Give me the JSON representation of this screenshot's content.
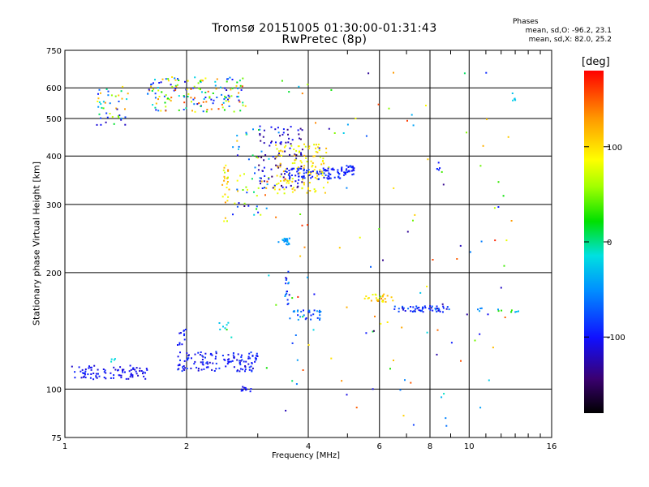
{
  "chart_data": {
    "type": "scatter",
    "title": "Tromsø 20151005 01:30:00-01:31:43",
    "subtitle": "RwPretec (8p)",
    "xlabel": "Frequency [MHz]",
    "ylabel": "Stationary phase Virtual Height [km]",
    "x_scale": "log",
    "y_scale": "log",
    "xlim": [
      1,
      16
    ],
    "ylim": [
      75,
      750
    ],
    "x_ticks": [
      "1",
      "2",
      "4",
      "6",
      "8",
      "10",
      "16"
    ],
    "x_tick_values": [
      1,
      2,
      4,
      6,
      8,
      10,
      16
    ],
    "y_ticks": [
      "75",
      "100",
      "200",
      "300",
      "400",
      "500",
      "600",
      "750"
    ],
    "y_tick_values": [
      75,
      100,
      200,
      300,
      400,
      500,
      600,
      750
    ],
    "grid": true,
    "colorbar": {
      "unit": "[deg]",
      "range": [
        -180,
        180
      ],
      "ticks": [
        "100",
        "0",
        "-100"
      ],
      "tick_values": [
        100,
        0,
        -100
      ]
    },
    "annotations": {
      "heading": "Phases",
      "line1": "mean, sd,O: -96.2, 23.1",
      "line2": "mean, sd,X:  82.0, 25.2"
    },
    "clusters": [
      {
        "x": [
          1.0,
          1.6
        ],
        "y": [
          106,
          115
        ],
        "phase": [
          -120,
          -90
        ],
        "n": 90
      },
      {
        "x": [
          1.3,
          1.35
        ],
        "y": [
          117,
          120
        ],
        "phase": [
          -20,
          -10
        ],
        "n": 4
      },
      {
        "x": [
          1.9,
          3.0
        ],
        "y": [
          111,
          125
        ],
        "phase": [
          -120,
          -80
        ],
        "n": 130
      },
      {
        "x": [
          1.9,
          2.0
        ],
        "y": [
          130,
          145
        ],
        "phase": [
          -120,
          -90
        ],
        "n": 12
      },
      {
        "x": [
          2.7,
          2.9
        ],
        "y": [
          98,
          102
        ],
        "phase": [
          -110,
          -90
        ],
        "n": 10
      },
      {
        "x": [
          2.4,
          2.6
        ],
        "y": [
          135,
          150
        ],
        "phase": [
          -30,
          40
        ],
        "n": 8
      },
      {
        "x": [
          1.2,
          1.45
        ],
        "y": [
          480,
          610
        ],
        "phase": [
          -130,
          140
        ],
        "n": 45
      },
      {
        "x": [
          1.6,
          2.8
        ],
        "y": [
          520,
          640
        ],
        "phase": [
          -120,
          160
        ],
        "n": 160
      },
      {
        "x": [
          2.45,
          2.55
        ],
        "y": [
          270,
          380
        ],
        "phase": [
          60,
          140
        ],
        "n": 25
      },
      {
        "x": [
          2.6,
          3.2
        ],
        "y": [
          280,
          480
        ],
        "phase": [
          -140,
          120
        ],
        "n": 55
      },
      {
        "x": [
          3.0,
          3.9
        ],
        "y": [
          330,
          480
        ],
        "phase": [
          -150,
          -90
        ],
        "n": 90
      },
      {
        "x": [
          3.3,
          4.5
        ],
        "y": [
          320,
          430
        ],
        "phase": [
          70,
          120
        ],
        "n": 120
      },
      {
        "x": [
          3.5,
          4.8
        ],
        "y": [
          348,
          372
        ],
        "phase": [
          -110,
          -80
        ],
        "n": 80
      },
      {
        "x": [
          4.8,
          5.2
        ],
        "y": [
          355,
          378
        ],
        "phase": [
          -110,
          -80
        ],
        "n": 35
      },
      {
        "x": [
          3.45,
          3.6
        ],
        "y": [
          236,
          246
        ],
        "phase": [
          -60,
          -30
        ],
        "n": 18
      },
      {
        "x": [
          3.5,
          3.6
        ],
        "y": [
          165,
          195
        ],
        "phase": [
          -120,
          -40
        ],
        "n": 15
      },
      {
        "x": [
          3.6,
          4.3
        ],
        "y": [
          150,
          160
        ],
        "phase": [
          -100,
          -40
        ],
        "n": 30
      },
      {
        "x": [
          5.5,
          6.5
        ],
        "y": [
          168,
          176
        ],
        "phase": [
          80,
          140
        ],
        "n": 28
      },
      {
        "x": [
          6.5,
          9.0
        ],
        "y": [
          158,
          164
        ],
        "phase": [
          -120,
          -60
        ],
        "n": 55
      },
      {
        "x": [
          10.5,
          13.5
        ],
        "y": [
          158,
          162
        ],
        "phase": [
          -60,
          40
        ],
        "n": 12
      },
      {
        "x": [
          12.8,
          13.0
        ],
        "y": [
          550,
          590
        ],
        "phase": [
          -30,
          -20
        ],
        "n": 5
      },
      {
        "x": [
          8.3,
          8.5
        ],
        "y": [
          365,
          385
        ],
        "phase": [
          -100,
          -90
        ],
        "n": 5
      },
      {
        "x": [
          3.0,
          13.0
        ],
        "y": [
          80,
          660
        ],
        "phase": [
          -150,
          170
        ],
        "n": 130
      }
    ]
  }
}
